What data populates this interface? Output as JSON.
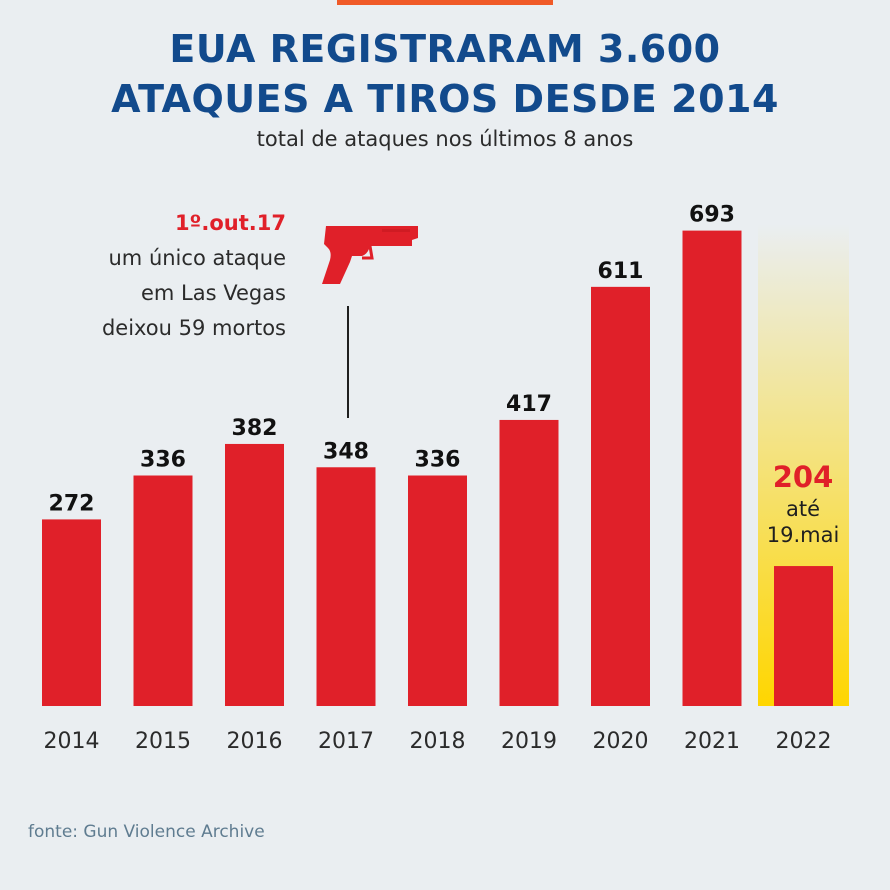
{
  "header": {
    "title_line1": "EUA REGISTRARAM 3.600",
    "title_line2": "ATAQUES A TIROS DESDE 2014",
    "subtitle": "total de ataques nos últimos 8 anos"
  },
  "annotation": {
    "date": "1º.out.17",
    "lines": [
      "um único ataque",
      "em Las Vegas",
      "deixou 59 mortos"
    ],
    "icon": "pistol-icon"
  },
  "partial_year": {
    "value_label": "204",
    "note_line1": "até",
    "note_line2": "19.mai"
  },
  "source": "fonte: Gun Violence Archive",
  "colors": {
    "bar": "#e02029",
    "title": "#124a8c",
    "highlight": "#ffd600",
    "accent": "#f05a28"
  },
  "chart_data": {
    "type": "bar",
    "title": "EUA REGISTRARAM 3.600 ATAQUES A TIROS DESDE 2014",
    "subtitle": "total de ataques nos últimos 8 anos",
    "categories": [
      "2014",
      "2015",
      "2016",
      "2017",
      "2018",
      "2019",
      "2020",
      "2021",
      "2022"
    ],
    "values": [
      272,
      336,
      382,
      348,
      336,
      417,
      611,
      693,
      204
    ],
    "data_labels": [
      "272",
      "336",
      "382",
      "348",
      "336",
      "417",
      "611",
      "693",
      "204"
    ],
    "ylim": [
      0,
      750
    ],
    "grid": false,
    "highlighted_category": "2022"
  }
}
